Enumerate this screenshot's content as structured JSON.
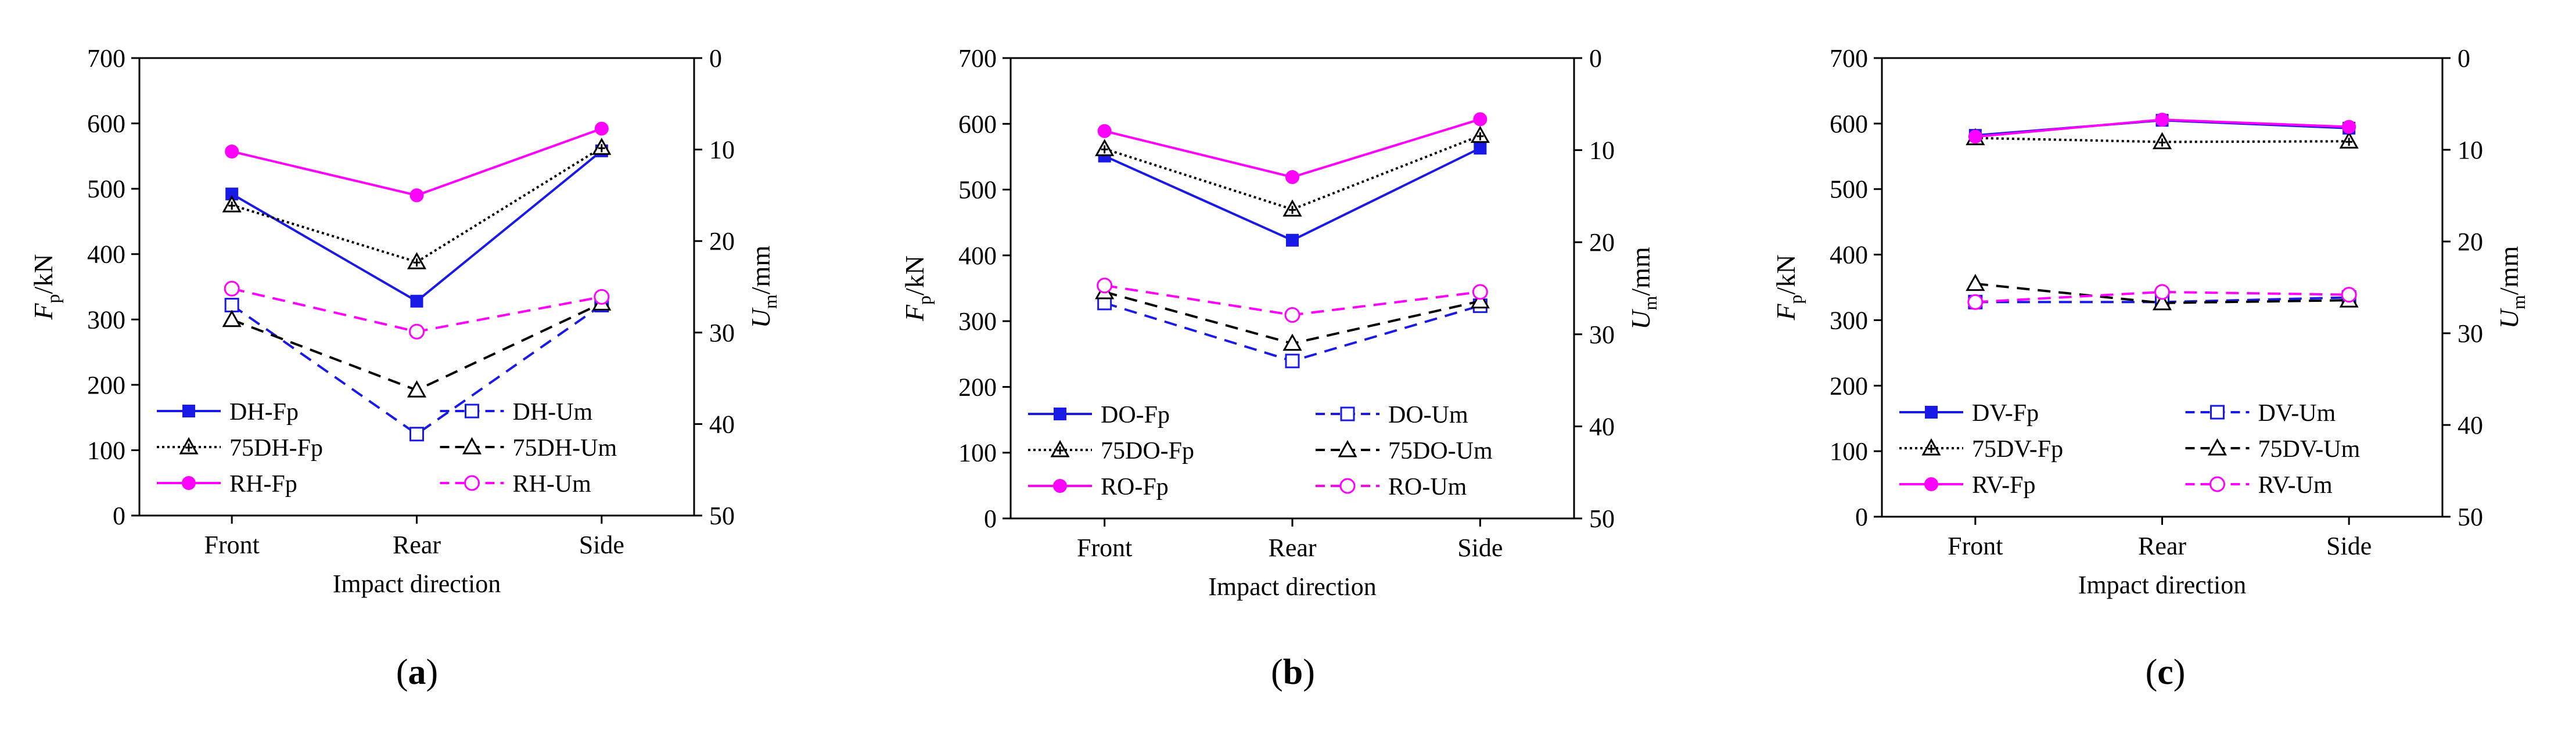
{
  "figure": {
    "panels": [
      {
        "caption_letter": "a",
        "caption_open": "(",
        "caption_close": ")"
      },
      {
        "caption_letter": "b",
        "caption_open": "(",
        "caption_close": ")"
      },
      {
        "caption_letter": "c",
        "caption_open": "(",
        "caption_close": ")"
      }
    ]
  },
  "chart_data": [
    {
      "type": "line",
      "title": "",
      "categories": [
        "Front",
        "Rear",
        "Side"
      ],
      "xlabel": "Impact direction",
      "ylabel": {
        "main": "F",
        "sub": "p",
        "unit": "/kN"
      },
      "y2label": {
        "main": "U",
        "sub": "m",
        "unit": "/mm"
      },
      "ylim": [
        0,
        700
      ],
      "yticks": [
        0,
        100,
        200,
        300,
        400,
        500,
        600,
        700
      ],
      "y2lim": [
        0,
        50
      ],
      "y2ticks": [
        0,
        10,
        20,
        30,
        40,
        50
      ],
      "y2_inverted": true,
      "legend_placement": "lower-inside",
      "series": [
        {
          "name": "DH-Fp",
          "axis": "left",
          "values": [
            492,
            328,
            558
          ],
          "color": "#1a1ae6",
          "dash": "solid",
          "marker": "square-filled"
        },
        {
          "name": "75DH-Fp",
          "axis": "left",
          "values": [
            475,
            388,
            563
          ],
          "color": "#000000",
          "dash": "dotted",
          "marker": "triangle-star"
        },
        {
          "name": "RH-Fp",
          "axis": "left",
          "values": [
            557,
            490,
            592
          ],
          "color": "#ff00ff",
          "dash": "solid",
          "marker": "circle-filled"
        },
        {
          "name": "DH-Um",
          "axis": "right",
          "values": [
            27.0,
            41.1,
            27.0
          ],
          "color": "#1a1ae6",
          "dash": "dashed",
          "marker": "square-open"
        },
        {
          "name": "75DH-Um",
          "axis": "right",
          "values": [
            28.6,
            36.3,
            26.8
          ],
          "color": "#000000",
          "dash": "dashed",
          "marker": "triangle-open"
        },
        {
          "name": "RH-Um",
          "axis": "right",
          "values": [
            25.2,
            29.9,
            26.1
          ],
          "color": "#ff00ff",
          "dash": "dashed",
          "marker": "circle-open"
        }
      ]
    },
    {
      "type": "line",
      "title": "",
      "categories": [
        "Front",
        "Rear",
        "Side"
      ],
      "xlabel": "Impact direction",
      "ylabel": {
        "main": "F",
        "sub": "p",
        "unit": "/kN"
      },
      "y2label": {
        "main": "U",
        "sub": "m",
        "unit": "/mm"
      },
      "ylim": [
        0,
        700
      ],
      "yticks": [
        0,
        100,
        200,
        300,
        400,
        500,
        600,
        700
      ],
      "y2lim": [
        0,
        50
      ],
      "y2ticks": [
        0,
        10,
        20,
        30,
        40,
        50
      ],
      "y2_inverted": true,
      "legend_placement": "lower-inside",
      "series": [
        {
          "name": "DO-Fp",
          "axis": "left",
          "values": [
            551,
            423,
            563
          ],
          "color": "#1a1ae6",
          "dash": "solid",
          "marker": "square-filled"
        },
        {
          "name": "75DO-Fp",
          "axis": "left",
          "values": [
            562,
            470,
            582
          ],
          "color": "#000000",
          "dash": "dotted",
          "marker": "triangle-star"
        },
        {
          "name": "RO-Fp",
          "axis": "left",
          "values": [
            589,
            519,
            607
          ],
          "color": "#ff00ff",
          "dash": "solid",
          "marker": "circle-filled"
        },
        {
          "name": "DO-Um",
          "axis": "right",
          "values": [
            26.6,
            32.9,
            26.9
          ],
          "color": "#1a1ae6",
          "dash": "dashed",
          "marker": "square-open"
        },
        {
          "name": "75DO-Um",
          "axis": "right",
          "values": [
            25.4,
            31.0,
            26.4
          ],
          "color": "#000000",
          "dash": "dashed",
          "marker": "triangle-open"
        },
        {
          "name": "RO-Um",
          "axis": "right",
          "values": [
            24.7,
            27.9,
            25.4
          ],
          "color": "#ff00ff",
          "dash": "dashed",
          "marker": "circle-open"
        }
      ]
    },
    {
      "type": "line",
      "title": "",
      "categories": [
        "Front",
        "Rear",
        "Side"
      ],
      "xlabel": "Impact direction",
      "ylabel": {
        "main": "F",
        "sub": "p",
        "unit": "/kN"
      },
      "y2label": {
        "main": "U",
        "sub": "m",
        "unit": "/mm"
      },
      "ylim": [
        0,
        700
      ],
      "yticks": [
        0,
        100,
        200,
        300,
        400,
        500,
        600,
        700
      ],
      "y2lim": [
        0,
        50
      ],
      "y2ticks": [
        0,
        10,
        20,
        30,
        40,
        50
      ],
      "y2_inverted": true,
      "legend_placement": "lower-inside",
      "series": [
        {
          "name": "DV-Fp",
          "axis": "left",
          "values": [
            582,
            605,
            593
          ],
          "color": "#1a1ae6",
          "dash": "solid",
          "marker": "square-filled"
        },
        {
          "name": "75DV-Fp",
          "axis": "left",
          "values": [
            578,
            572,
            573
          ],
          "color": "#000000",
          "dash": "dotted",
          "marker": "triangle-star"
        },
        {
          "name": "RV-Fp",
          "axis": "left",
          "values": [
            580,
            606,
            595
          ],
          "color": "#ff00ff",
          "dash": "solid",
          "marker": "circle-filled"
        },
        {
          "name": "DV-Um",
          "axis": "right",
          "values": [
            26.6,
            26.6,
            26.1
          ],
          "color": "#1a1ae6",
          "dash": "dashed",
          "marker": "square-open"
        },
        {
          "name": "75DV-Um",
          "axis": "right",
          "values": [
            24.6,
            26.7,
            26.4
          ],
          "color": "#000000",
          "dash": "dashed",
          "marker": "triangle-open"
        },
        {
          "name": "RV-Um",
          "axis": "right",
          "values": [
            26.6,
            25.5,
            25.8
          ],
          "color": "#ff00ff",
          "dash": "dashed",
          "marker": "circle-open"
        }
      ]
    }
  ]
}
